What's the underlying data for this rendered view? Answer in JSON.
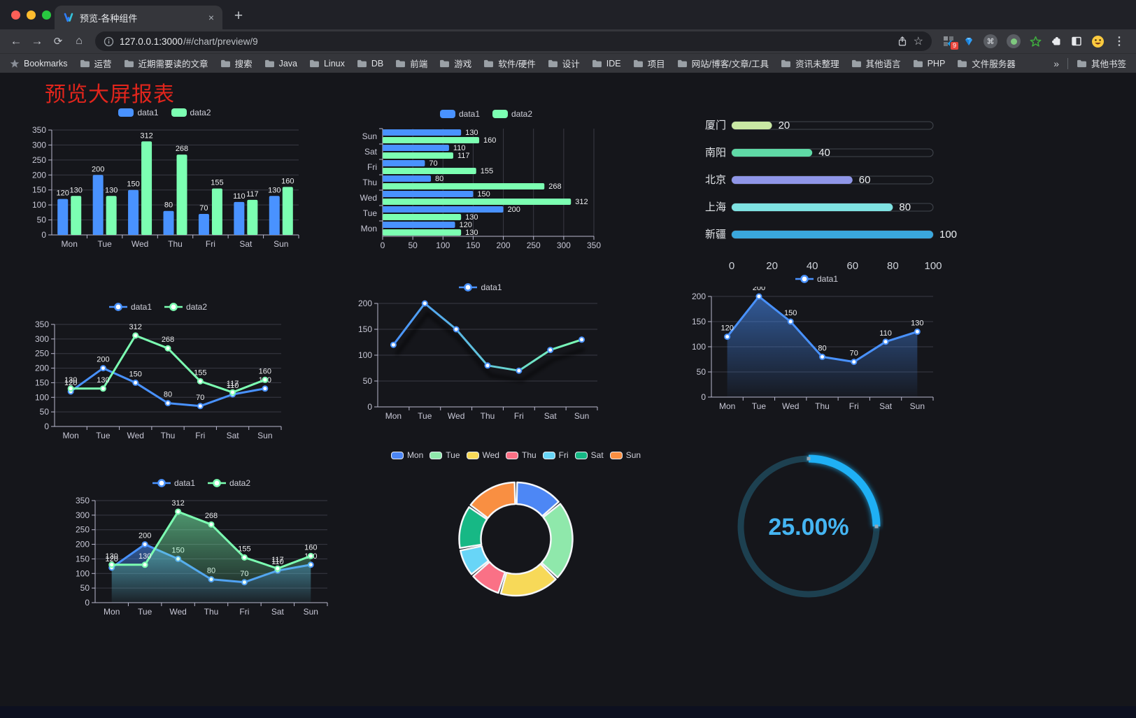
{
  "browser": {
    "tab": {
      "title": "预览-各种组件",
      "close_label": "×"
    },
    "new_tab_label": "+",
    "url": {
      "host": "127.0.0.1:3000",
      "path": "/#/chart/preview/9"
    },
    "extension_badge": "9",
    "bookmarks": [
      "Bookmarks",
      "运营",
      "近期需要读的文章",
      "搜索",
      "Java",
      "Linux",
      "DB",
      "前端",
      "游戏",
      "软件/硬件",
      "设计",
      "IDE",
      "项目",
      "网站/博客/文章/工具",
      "资讯未整理",
      "其他语言",
      "PHP",
      "文件服务器"
    ],
    "bookmarks_overflow": "»",
    "other_bookmarks": "其他书签"
  },
  "page": {
    "title": "预览大屏报表",
    "title_color": "#e0251c"
  },
  "chart_data": [
    {
      "id": "c0",
      "type": "bar",
      "legend": [
        "data1",
        "data2"
      ],
      "legend_marker": "rect",
      "colors": [
        "#4992ff",
        "#7cffb2"
      ],
      "categories": [
        "Mon",
        "Tue",
        "Wed",
        "Thu",
        "Fri",
        "Sat",
        "Sun"
      ],
      "series": [
        {
          "name": "data1",
          "values": [
            120,
            200,
            150,
            80,
            70,
            110,
            130
          ]
        },
        {
          "name": "data2",
          "values": [
            130,
            130,
            312,
            268,
            155,
            117,
            160
          ]
        }
      ],
      "ymax": 350,
      "ystep": 50,
      "show_labels": true
    },
    {
      "id": "c1",
      "type": "hbar",
      "legend": [
        "data1",
        "data2"
      ],
      "legend_marker": "rect",
      "colors": [
        "#4992ff",
        "#7cffb2"
      ],
      "categories": [
        "Mon",
        "Tue",
        "Wed",
        "Thu",
        "Fri",
        "Sat",
        "Sun"
      ],
      "series": [
        {
          "name": "data1",
          "values": [
            120,
            200,
            150,
            80,
            70,
            110,
            130
          ]
        },
        {
          "name": "data2",
          "values": [
            130,
            130,
            312,
            268,
            155,
            117,
            160
          ]
        }
      ],
      "xmax": 350,
      "xstep": 50,
      "show_labels": true
    },
    {
      "id": "c2",
      "type": "progress",
      "max": 100,
      "axis_ticks": [
        0,
        20,
        40,
        60,
        80,
        100
      ],
      "items": [
        {
          "label": "厦门",
          "value": 20,
          "color": "#c9e8a4"
        },
        {
          "label": "南阳",
          "value": 40,
          "color": "#5fd9a6"
        },
        {
          "label": "北京",
          "value": 60,
          "color": "#8f96e8"
        },
        {
          "label": "上海",
          "value": 80,
          "color": "#7fe2e2"
        },
        {
          "label": "新疆",
          "value": 100,
          "color": "#3aa7dd"
        }
      ]
    },
    {
      "id": "c3",
      "type": "line",
      "legend": [
        "data1",
        "data2"
      ],
      "legend_marker": "circleline",
      "colors": [
        "#4992ff",
        "#7cffb2"
      ],
      "categories": [
        "Mon",
        "Tue",
        "Wed",
        "Thu",
        "Fri",
        "Sat",
        "Sun"
      ],
      "series": [
        {
          "name": "data1",
          "values": [
            120,
            200,
            150,
            80,
            70,
            110,
            130
          ]
        },
        {
          "name": "data2",
          "values": [
            130,
            130,
            312,
            268,
            155,
            117,
            160
          ]
        }
      ],
      "ymax": 350,
      "ystep": 50,
      "show_labels": true
    },
    {
      "id": "c4",
      "type": "line",
      "legend": [
        "data1"
      ],
      "legend_marker": "circleline",
      "colors": [
        "#4992ff"
      ],
      "gradient_stroke": [
        "#4992ff",
        "#7cffb2"
      ],
      "shadow": true,
      "categories": [
        "Mon",
        "Tue",
        "Wed",
        "Thu",
        "Fri",
        "Sat",
        "Sun"
      ],
      "series": [
        {
          "name": "data1",
          "values": [
            120,
            200,
            150,
            80,
            70,
            110,
            130
          ]
        }
      ],
      "ymax": 200,
      "ystep": 50,
      "show_labels": false
    },
    {
      "id": "c5",
      "type": "line",
      "area": true,
      "legend": [
        "data1"
      ],
      "legend_marker": "circleline",
      "colors": [
        "#4992ff"
      ],
      "categories": [
        "Mon",
        "Tue",
        "Wed",
        "Thu",
        "Fri",
        "Sat",
        "Sun"
      ],
      "series": [
        {
          "name": "data1",
          "values": [
            120,
            200,
            150,
            80,
            70,
            110,
            130
          ]
        }
      ],
      "ymax": 200,
      "ystep": 50,
      "show_labels": true
    },
    {
      "id": "c6",
      "type": "line",
      "area": true,
      "legend": [
        "data1",
        "data2"
      ],
      "legend_marker": "circleline",
      "colors": [
        "#4992ff",
        "#7cffb2"
      ],
      "categories": [
        "Mon",
        "Tue",
        "Wed",
        "Thu",
        "Fri",
        "Sat",
        "Sun"
      ],
      "series": [
        {
          "name": "data1",
          "values": [
            120,
            200,
            150,
            80,
            70,
            110,
            130
          ]
        },
        {
          "name": "data2",
          "values": [
            130,
            130,
            312,
            268,
            155,
            117,
            160
          ]
        }
      ],
      "ymax": 350,
      "ystep": 50,
      "show_labels": true
    },
    {
      "id": "c7",
      "type": "donut",
      "legend": [
        "Mon",
        "Tue",
        "Wed",
        "Thu",
        "Fri",
        "Sat",
        "Sun"
      ],
      "legend_marker": "rect",
      "legend_border": true,
      "colors": [
        "#4d87f5",
        "#8fe8ab",
        "#f7d958",
        "#fa7186",
        "#68d5f7",
        "#17b885",
        "#f98f42"
      ],
      "values": [
        120,
        200,
        150,
        80,
        70,
        110,
        130
      ],
      "border_color": "#f4f6f9"
    },
    {
      "id": "c8",
      "type": "gauge",
      "value": 25,
      "label": "25.00%",
      "color": "#1fb0f5",
      "track_color": "#1d4050",
      "text_color": "#45b5f2"
    }
  ]
}
